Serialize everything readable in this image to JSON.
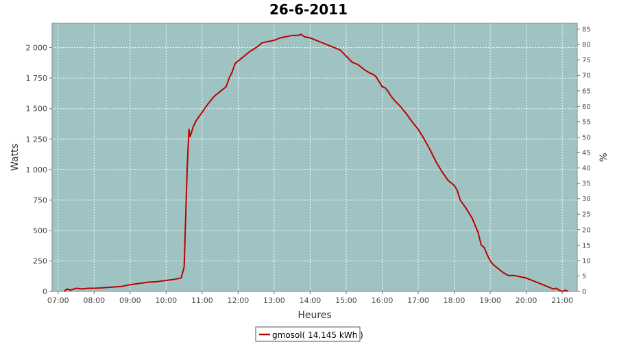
{
  "chart_data": {
    "type": "line",
    "title": "26-6-2011",
    "xlabel": "Heures",
    "ylabel": "Watts",
    "y2label": "%",
    "x_tick_labels": [
      "07:00",
      "08:00",
      "09:00",
      "10:00",
      "11:00",
      "12:00",
      "13:00",
      "14:00",
      "15:00",
      "16:00",
      "17:00",
      "18:00",
      "19:00",
      "20:00",
      "21:00"
    ],
    "y_tick_labels": [
      "0",
      "250",
      "500",
      "750",
      "1 000",
      "1 250",
      "1 500",
      "1 750",
      "2 000"
    ],
    "y_ticks": [
      0,
      250,
      500,
      750,
      1000,
      1250,
      1500,
      1750,
      2000
    ],
    "y2_ticks": [
      0,
      5,
      10,
      15,
      20,
      25,
      30,
      35,
      40,
      45,
      50,
      55,
      60,
      65,
      70,
      75,
      80,
      85
    ],
    "xlim": [
      "06:50",
      "21:25"
    ],
    "ylim": [
      0,
      2200
    ],
    "y2lim": [
      0,
      86.9
    ],
    "grid": true,
    "legend_position": "bottom-center",
    "colors": {
      "plot_bg": "#9fc3c3",
      "line": "#bb0000",
      "grid": "#ffffff"
    },
    "series": [
      {
        "name": "gmosol( 14,145 kWh )",
        "x": [
          "07:10",
          "07:15",
          "07:20",
          "07:30",
          "07:40",
          "07:50",
          "08:00",
          "08:15",
          "08:30",
          "08:45",
          "09:00",
          "09:15",
          "09:30",
          "09:45",
          "10:00",
          "10:15",
          "10:25",
          "10:30",
          "10:35",
          "10:38",
          "10:40",
          "10:42",
          "10:45",
          "10:50",
          "11:00",
          "11:10",
          "11:20",
          "11:30",
          "11:40",
          "11:45",
          "11:50",
          "11:55",
          "12:00",
          "12:10",
          "12:20",
          "12:30",
          "12:40",
          "12:50",
          "13:00",
          "13:10",
          "13:20",
          "13:30",
          "13:40",
          "13:45",
          "13:50",
          "14:00",
          "14:10",
          "14:20",
          "14:30",
          "14:40",
          "14:50",
          "15:00",
          "15:10",
          "15:20",
          "15:30",
          "15:40",
          "15:45",
          "15:50",
          "16:00",
          "16:05",
          "16:10",
          "16:15",
          "16:20",
          "16:30",
          "16:40",
          "16:50",
          "17:00",
          "17:10",
          "17:20",
          "17:30",
          "17:40",
          "17:50",
          "18:00",
          "18:05",
          "18:10",
          "18:20",
          "18:30",
          "18:40",
          "18:45",
          "18:50",
          "18:55",
          "19:00",
          "19:05",
          "19:10",
          "19:20",
          "19:30",
          "19:40",
          "19:50",
          "20:00",
          "20:10",
          "20:20",
          "20:30",
          "20:40",
          "20:45",
          "20:50",
          "20:55",
          "21:00",
          "21:05",
          "21:10"
        ],
        "values": [
          0,
          20,
          10,
          25,
          20,
          25,
          25,
          30,
          35,
          40,
          55,
          65,
          75,
          80,
          90,
          100,
          110,
          200,
          1000,
          1330,
          1270,
          1300,
          1350,
          1400,
          1470,
          1540,
          1600,
          1640,
          1680,
          1750,
          1800,
          1870,
          1890,
          1930,
          1970,
          2000,
          2040,
          2050,
          2060,
          2080,
          2090,
          2100,
          2100,
          2110,
          2090,
          2080,
          2060,
          2040,
          2020,
          2000,
          1980,
          1930,
          1880,
          1860,
          1820,
          1790,
          1780,
          1760,
          1680,
          1670,
          1640,
          1600,
          1570,
          1520,
          1460,
          1390,
          1330,
          1250,
          1160,
          1060,
          980,
          910,
          870,
          830,
          750,
          680,
          600,
          480,
          380,
          360,
          300,
          250,
          220,
          200,
          160,
          130,
          130,
          120,
          110,
          90,
          70,
          50,
          30,
          20,
          25,
          10,
          0,
          10,
          0
        ]
      }
    ]
  }
}
